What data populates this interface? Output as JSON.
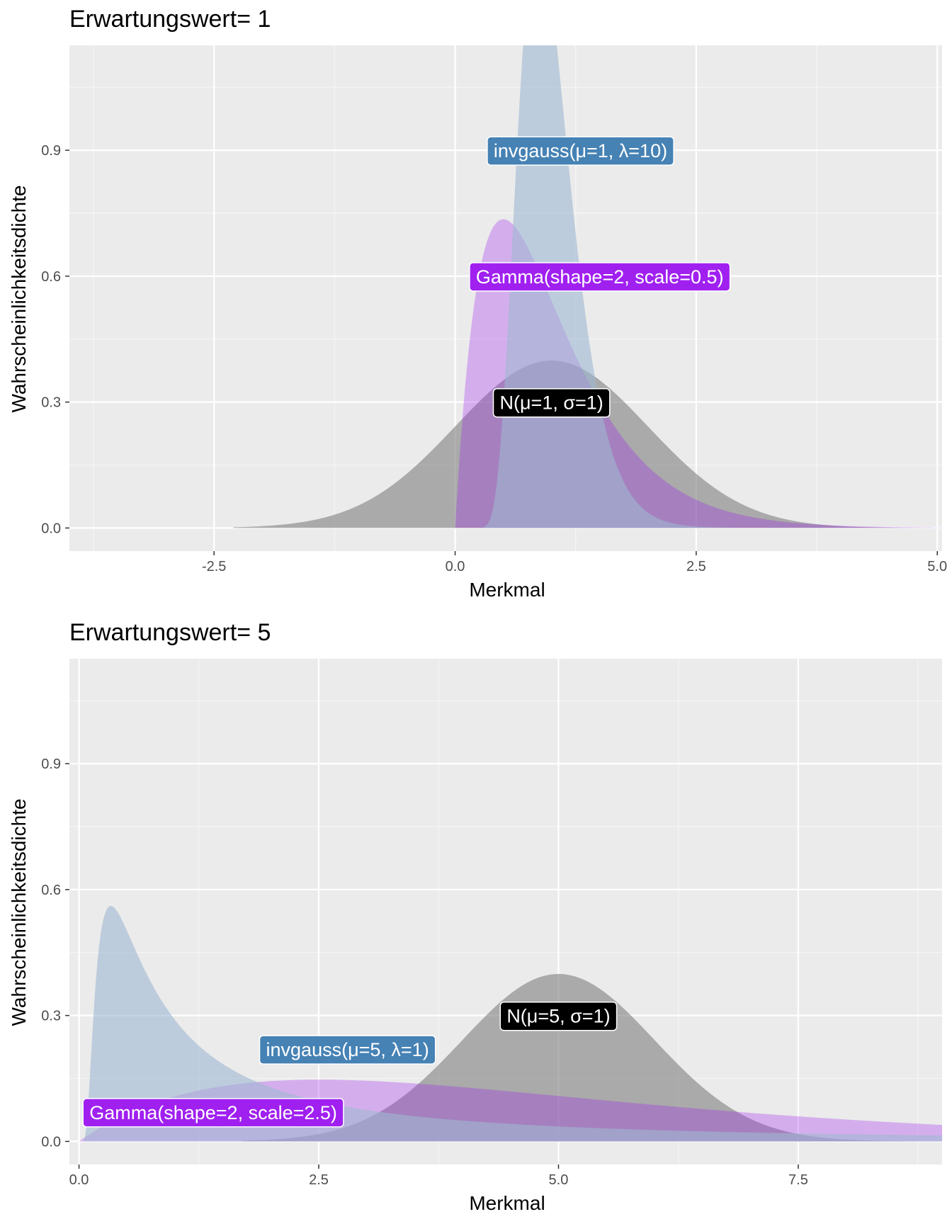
{
  "colors": {
    "panel_background": "#ebebeb",
    "grid_major": "#ffffff",
    "grid_minor": "#f5f5f5",
    "normal": "#7f7f7f",
    "invgauss": "#9fb8d2",
    "gamma": "#a020f0",
    "invgauss_label": "#4682b4",
    "gamma_label": "#a020f0",
    "normal_label": "#000000"
  },
  "chart_data": [
    {
      "type": "area",
      "title": "Erwartungswert= 1",
      "xlabel": "Merkmal",
      "ylabel": "Wahrscheinlichkeitsdichte",
      "xlim": [
        -4.0,
        5.05
      ],
      "ylim": [
        -0.055,
        1.15
      ],
      "x_ticks": [
        -2.5,
        0.0,
        2.5,
        5.0
      ],
      "x_tick_labels": [
        "-2.5",
        "0.0",
        "2.5",
        "5.0"
      ],
      "y_ticks": [
        0.0,
        0.3,
        0.6,
        0.9
      ],
      "y_tick_labels": [
        "0.0",
        "0.3",
        "0.6",
        "0.9"
      ],
      "grid": true,
      "series": [
        {
          "key": "normal",
          "dist": "normal",
          "params": {
            "mu": 1,
            "sigma": 1
          },
          "x_range": [
            -2.3,
            5.05
          ],
          "label": "N(μ=1, σ=1)",
          "label_x": 1.0,
          "label_y": 0.3
        },
        {
          "key": "gamma",
          "dist": "gamma",
          "params": {
            "shape": 2,
            "scale": 0.5
          },
          "x_range": [
            0.0,
            5.05
          ],
          "label": "Gamma(shape=2, scale=0.5)",
          "label_x": 1.5,
          "label_y": 0.6
        },
        {
          "key": "invgauss",
          "dist": "invgauss",
          "params": {
            "mu": 1,
            "lambda": 10
          },
          "x_range": [
            0.0,
            5.05
          ],
          "label": "invgauss(μ=1, λ=10)",
          "label_x": 1.3,
          "label_y": 0.9
        }
      ]
    },
    {
      "type": "area",
      "title": "Erwartungswert= 5",
      "xlabel": "Merkmal",
      "ylabel": "Wahrscheinlichkeitsdichte",
      "xlim": [
        -0.1,
        9.0
      ],
      "ylim": [
        -0.055,
        1.15
      ],
      "x_ticks": [
        0.0,
        2.5,
        5.0,
        7.5
      ],
      "x_tick_labels": [
        "0.0",
        "2.5",
        "5.0",
        "7.5"
      ],
      "y_ticks": [
        0.0,
        0.3,
        0.6,
        0.9
      ],
      "y_tick_labels": [
        "0.0",
        "0.3",
        "0.6",
        "0.9"
      ],
      "grid": true,
      "series": [
        {
          "key": "normal",
          "dist": "normal",
          "params": {
            "mu": 5,
            "sigma": 1
          },
          "x_range": [
            1.7,
            9.0
          ],
          "label": "N(μ=5, σ=1)",
          "label_x": 5.0,
          "label_y": 0.3
        },
        {
          "key": "gamma",
          "dist": "gamma",
          "params": {
            "shape": 2,
            "scale": 2.5
          },
          "x_range": [
            0.0,
            9.0
          ],
          "label": "Gamma(shape=2, scale=2.5)",
          "label_x": 1.4,
          "label_y": 0.07
        },
        {
          "key": "invgauss",
          "dist": "invgauss",
          "params": {
            "mu": 5,
            "lambda": 1
          },
          "x_range": [
            0.0,
            9.0
          ],
          "label": "invgauss(μ=5, λ=1)",
          "label_x": 2.8,
          "label_y": 0.22
        }
      ]
    }
  ]
}
